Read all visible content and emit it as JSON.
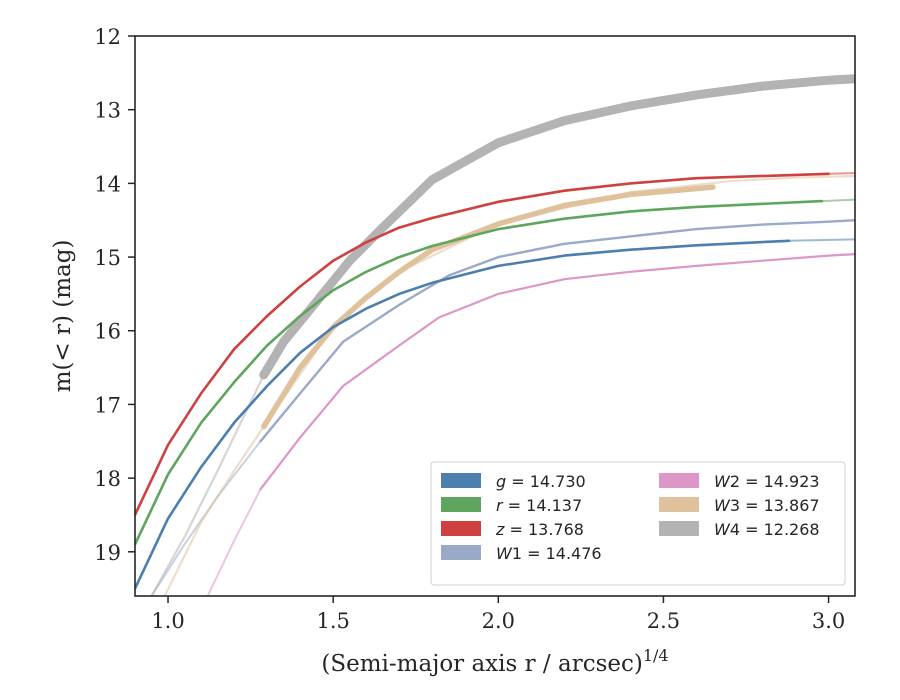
{
  "chart_data": {
    "type": "line",
    "xlabel": "(Semi-major axis r / arcsec)",
    "xlabel_superscript": "1/4",
    "ylabel": "m(< r) (mag)",
    "xlim": [
      0.9,
      3.08
    ],
    "ylim": [
      19.6,
      12.0
    ],
    "y_inverted": true,
    "grid": false,
    "legend_position": "lower-right",
    "x_ticks": [
      "1.0",
      "1.5",
      "2.0",
      "2.5",
      "3.0"
    ],
    "y_ticks": [
      "12",
      "13",
      "14",
      "15",
      "16",
      "17",
      "18",
      "19"
    ],
    "series": [
      {
        "name": "g = 14.730",
        "color": "#4c7fae",
        "points": [
          [
            0.9,
            19.5
          ],
          [
            1.0,
            18.55
          ],
          [
            1.1,
            17.85
          ],
          [
            1.2,
            17.25
          ],
          [
            1.3,
            16.75
          ],
          [
            1.4,
            16.3
          ],
          [
            1.5,
            15.95
          ],
          [
            1.6,
            15.7
          ],
          [
            1.7,
            15.5
          ],
          [
            1.8,
            15.35
          ],
          [
            2.0,
            15.12
          ],
          [
            2.2,
            14.98
          ],
          [
            2.4,
            14.9
          ],
          [
            2.6,
            14.84
          ],
          [
            2.88,
            14.78
          ]
        ],
        "faded_points": [
          [
            2.88,
            14.78
          ],
          [
            3.08,
            14.76
          ]
        ]
      },
      {
        "name": "r = 14.137",
        "color": "#5ea55e",
        "points": [
          [
            0.9,
            18.9
          ],
          [
            1.0,
            17.95
          ],
          [
            1.1,
            17.25
          ],
          [
            1.2,
            16.7
          ],
          [
            1.3,
            16.2
          ],
          [
            1.4,
            15.8
          ],
          [
            1.5,
            15.45
          ],
          [
            1.6,
            15.2
          ],
          [
            1.7,
            15.0
          ],
          [
            1.8,
            14.85
          ],
          [
            2.0,
            14.62
          ],
          [
            2.2,
            14.48
          ],
          [
            2.4,
            14.38
          ],
          [
            2.6,
            14.32
          ],
          [
            2.98,
            14.24
          ]
        ],
        "faded_points": [
          [
            2.98,
            14.24
          ],
          [
            3.08,
            14.22
          ]
        ]
      },
      {
        "name": "z = 13.768",
        "color": "#cf4040",
        "points": [
          [
            0.9,
            18.5
          ],
          [
            1.0,
            17.55
          ],
          [
            1.1,
            16.85
          ],
          [
            1.2,
            16.25
          ],
          [
            1.3,
            15.8
          ],
          [
            1.4,
            15.4
          ],
          [
            1.5,
            15.05
          ],
          [
            1.6,
            14.8
          ],
          [
            1.7,
            14.6
          ],
          [
            1.8,
            14.47
          ],
          [
            2.0,
            14.25
          ],
          [
            2.2,
            14.1
          ],
          [
            2.4,
            14.0
          ],
          [
            2.6,
            13.93
          ],
          [
            3.0,
            13.87
          ]
        ],
        "faded_points": [
          [
            3.0,
            13.87
          ],
          [
            3.08,
            13.86
          ]
        ]
      },
      {
        "name": "W1 = 14.476",
        "color": "#9ba9c9",
        "points": [
          [
            1.28,
            17.5
          ],
          [
            1.4,
            16.85
          ],
          [
            1.53,
            16.15
          ],
          [
            1.7,
            15.65
          ],
          [
            1.85,
            15.25
          ],
          [
            2.0,
            15.0
          ],
          [
            2.2,
            14.82
          ],
          [
            2.4,
            14.72
          ],
          [
            2.6,
            14.62
          ],
          [
            2.8,
            14.56
          ],
          [
            3.0,
            14.52
          ],
          [
            3.08,
            14.5
          ]
        ],
        "faded_points": [
          [
            0.95,
            19.6
          ],
          [
            1.05,
            18.9
          ],
          [
            1.15,
            18.25
          ],
          [
            1.28,
            17.5
          ]
        ]
      },
      {
        "name": "W2 = 14.923",
        "color": "#dd97c6",
        "points": [
          [
            1.28,
            18.15
          ],
          [
            1.4,
            17.45
          ],
          [
            1.53,
            16.75
          ],
          [
            1.7,
            16.2
          ],
          [
            1.82,
            15.82
          ],
          [
            2.0,
            15.5
          ],
          [
            2.2,
            15.3
          ],
          [
            2.4,
            15.2
          ],
          [
            2.6,
            15.12
          ],
          [
            2.8,
            15.05
          ],
          [
            3.0,
            14.98
          ],
          [
            3.08,
            14.96
          ]
        ],
        "faded_points": [
          [
            1.12,
            19.6
          ],
          [
            1.2,
            18.85
          ],
          [
            1.28,
            18.15
          ]
        ]
      },
      {
        "name": "W3 = 13.867",
        "color": "#dfc29c",
        "points": [
          [
            1.29,
            17.3
          ],
          [
            1.4,
            16.5
          ],
          [
            1.5,
            15.95
          ],
          [
            1.6,
            15.55
          ],
          [
            1.7,
            15.2
          ],
          [
            1.8,
            14.9
          ],
          [
            2.0,
            14.55
          ],
          [
            2.2,
            14.3
          ],
          [
            2.4,
            14.15
          ],
          [
            2.65,
            14.05
          ]
        ],
        "faded_points": [
          [
            0.99,
            19.6
          ],
          [
            1.1,
            18.6
          ],
          [
            1.2,
            17.9
          ],
          [
            1.29,
            17.3
          ],
          [
            1.5,
            15.95
          ],
          [
            1.7,
            15.2
          ],
          [
            2.0,
            14.55
          ],
          [
            2.4,
            14.12
          ],
          [
            2.7,
            13.97
          ],
          [
            2.9,
            13.92
          ],
          [
            3.08,
            13.9
          ]
        ]
      },
      {
        "name": "W4 = 12.268",
        "color": "#b3b3b3",
        "points": [
          [
            1.29,
            16.6
          ],
          [
            1.35,
            16.15
          ],
          [
            1.45,
            15.6
          ],
          [
            1.55,
            15.05
          ],
          [
            1.65,
            14.6
          ],
          [
            1.8,
            13.95
          ],
          [
            2.0,
            13.45
          ],
          [
            2.2,
            13.15
          ],
          [
            2.4,
            12.95
          ],
          [
            2.6,
            12.8
          ],
          [
            2.8,
            12.68
          ],
          [
            3.0,
            12.6
          ],
          [
            3.08,
            12.58
          ]
        ],
        "faded_points": [
          [
            0.95,
            19.6
          ],
          [
            1.05,
            18.8
          ],
          [
            1.15,
            17.9
          ],
          [
            1.29,
            16.6
          ]
        ]
      }
    ],
    "legend": [
      {
        "label": "g = 14.730",
        "italic": "g",
        "rest": " = 14.730",
        "color": "#4c7fae"
      },
      {
        "label": "r = 14.137",
        "italic": "r",
        "rest": " = 14.137",
        "color": "#5ea55e"
      },
      {
        "label": "z = 13.768",
        "italic": "z",
        "rest": " = 13.768",
        "color": "#cf4040"
      },
      {
        "label": "W1 = 14.476",
        "italic": "W",
        "rest": "1 = 14.476",
        "color": "#9ba9c9"
      },
      {
        "label": "W2 = 14.923",
        "italic": "W",
        "rest": "2 = 14.923",
        "color": "#dd97c6"
      },
      {
        "label": "W3 = 13.867",
        "italic": "W",
        "rest": "3 = 13.867",
        "color": "#dfc29c"
      },
      {
        "label": "W4 = 12.268",
        "italic": "W",
        "rest": "4 = 12.268",
        "color": "#b3b3b3"
      }
    ]
  }
}
